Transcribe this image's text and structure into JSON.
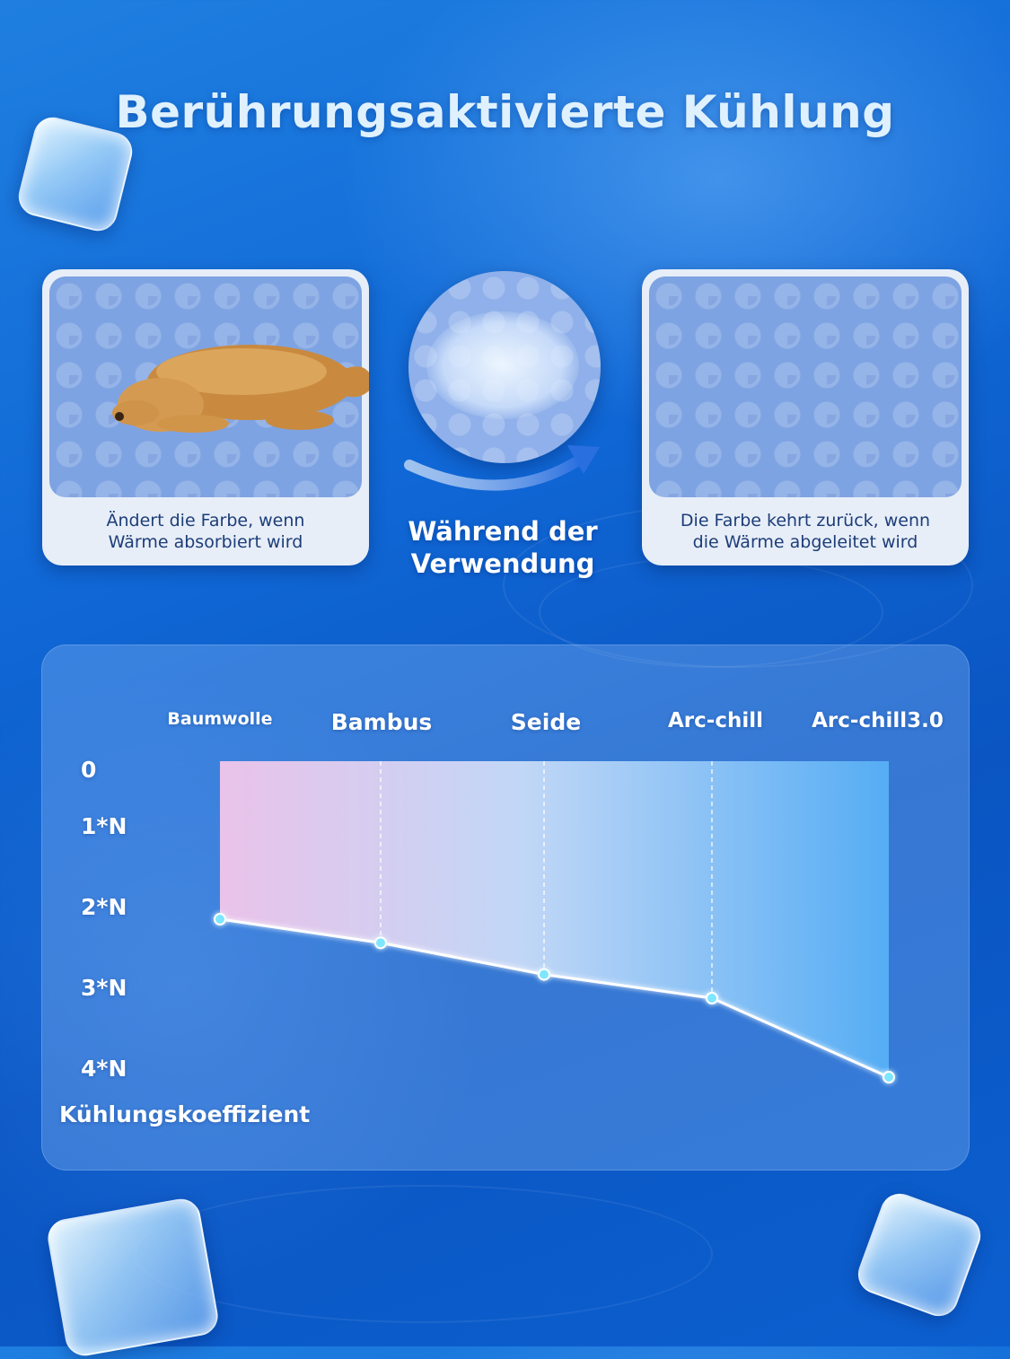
{
  "title": "Berührungsaktivierte Kühlung",
  "cards": {
    "left_caption_line1": "Ändert die Farbe, wenn",
    "left_caption_line2": "Wärme absorbiert wird",
    "right_caption_line1": "Die Farbe kehrt zurück, wenn",
    "right_caption_line2": "die Wärme abgeleitet wird"
  },
  "transition": {
    "line1": "Während der",
    "line2": "Verwendung"
  },
  "icons": [
    "ice-cube-icon",
    "arrow-curved-right-icon",
    "dog-image"
  ],
  "colors": {
    "background": "#1068d6",
    "title": "#dff1ff",
    "line": "#ffffff",
    "point": "#7fe6ff"
  },
  "chart_data": {
    "type": "line",
    "categories": [
      "Baumwolle",
      "Bambus",
      "Seide",
      "Arc-chill",
      "Arc-chill3.0"
    ],
    "values": [
      2.0,
      2.3,
      2.7,
      3.0,
      4.0
    ],
    "ylabel": "Kühlungskoeffizient",
    "y_ticks": [
      "0",
      "1*N",
      "2*N",
      "3*N",
      "4*N"
    ],
    "ylim": [
      0,
      4
    ],
    "y_inverted": true,
    "area_fill": "above-line gradient pink to blue",
    "grid": "vertical dashed lines at categories"
  }
}
